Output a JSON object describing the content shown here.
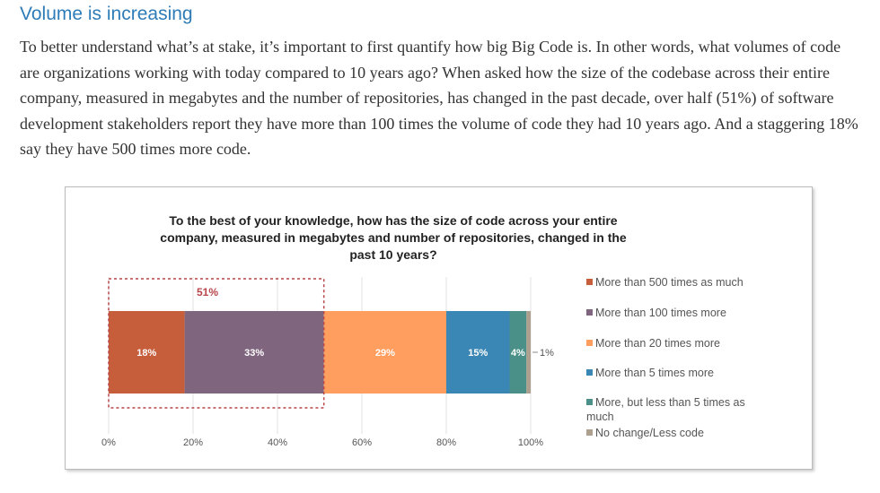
{
  "heading": "Volume is increasing",
  "paragraph": "To better understand what’s at stake, it’s important to first quantify how big Big Code is. In other words, what volumes of code are organizations working with today compared to 10 years ago? When asked how the size of the codebase across their entire company, measured in megabytes and the number of repositories, has changed in the past decade, over half (51%) of software development stakeholders report they have more than 100 times the volume of code they had 10 years ago. And a staggering 18% say they have 500 times more code.",
  "chart_data": {
    "type": "bar",
    "orientation": "horizontal-stacked",
    "title": "To the best of your knowledge, how has the size of code across your entire company, measured in megabytes and number of repositories, changed in the past 10 years?",
    "xlim": [
      0,
      100
    ],
    "xticks": [
      "0%",
      "20%",
      "40%",
      "60%",
      "80%",
      "100%"
    ],
    "series": [
      {
        "name": "More than 500 times as much",
        "value": 18,
        "label": "18%",
        "color": "#c65d3b"
      },
      {
        "name": "More than 100 times more",
        "value": 33,
        "label": "33%",
        "color": "#7f657e"
      },
      {
        "name": "More than 20 times more",
        "value": 29,
        "label": "29%",
        "color": "#ff9e5e"
      },
      {
        "name": "More than 5 times more",
        "value": 15,
        "label": "15%",
        "color": "#3a86b4"
      },
      {
        "name": "More, but less than 5 times as much",
        "value": 4,
        "label": "4%",
        "color": "#4a9088"
      },
      {
        "name": "No change/Less code",
        "value": 1,
        "label": "1%",
        "color": "#aea08e"
      }
    ],
    "annotation": {
      "label": "51%",
      "range": [
        0,
        51
      ],
      "color": "#b8454a"
    },
    "legend": "right",
    "grid": true
  }
}
